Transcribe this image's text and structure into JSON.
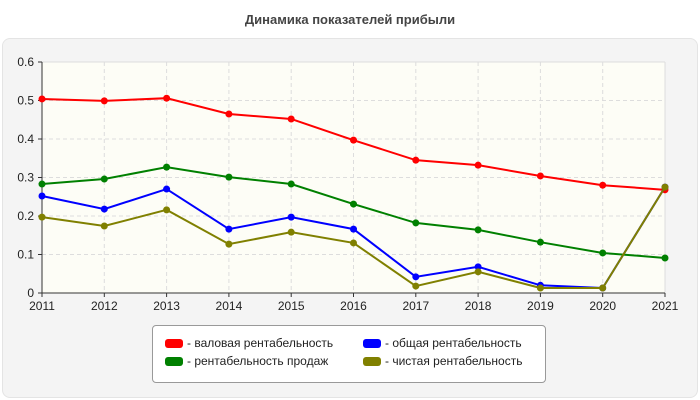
{
  "chart_data": {
    "type": "line",
    "title": "Динамика показателей прибыли",
    "x": [
      2011,
      2012,
      2013,
      2014,
      2015,
      2016,
      2017,
      2018,
      2019,
      2020,
      2021
    ],
    "ylim": [
      0,
      0.6
    ],
    "yticks": [
      0,
      0.1,
      0.2,
      0.3,
      0.4,
      0.5,
      0.6
    ],
    "ytick_labels": [
      "0",
      "0.1",
      "0.2",
      "0.3",
      "0.4",
      "0.5",
      "0.6"
    ],
    "grid": true,
    "legend_position": "bottom",
    "series": [
      {
        "name": "- валовая рентабельность",
        "color": "#ff0000",
        "values": [
          0.504,
          0.499,
          0.506,
          0.465,
          0.452,
          0.397,
          0.345,
          0.332,
          0.304,
          0.28,
          0.268
        ]
      },
      {
        "name": "- общая рентабельность",
        "color": "#0000ff",
        "values": [
          0.252,
          0.218,
          0.27,
          0.166,
          0.197,
          0.166,
          0.042,
          0.068,
          0.02,
          0.013,
          0.275
        ]
      },
      {
        "name": "- рентабельность продаж",
        "color": "#008000",
        "values": [
          0.283,
          0.296,
          0.327,
          0.301,
          0.283,
          0.231,
          0.182,
          0.164,
          0.132,
          0.104,
          0.091
        ]
      },
      {
        "name": "- чистая рентабельность",
        "color": "#808000",
        "values": [
          0.197,
          0.174,
          0.216,
          0.127,
          0.158,
          0.13,
          0.018,
          0.055,
          0.013,
          0.013,
          0.275
        ]
      }
    ]
  }
}
